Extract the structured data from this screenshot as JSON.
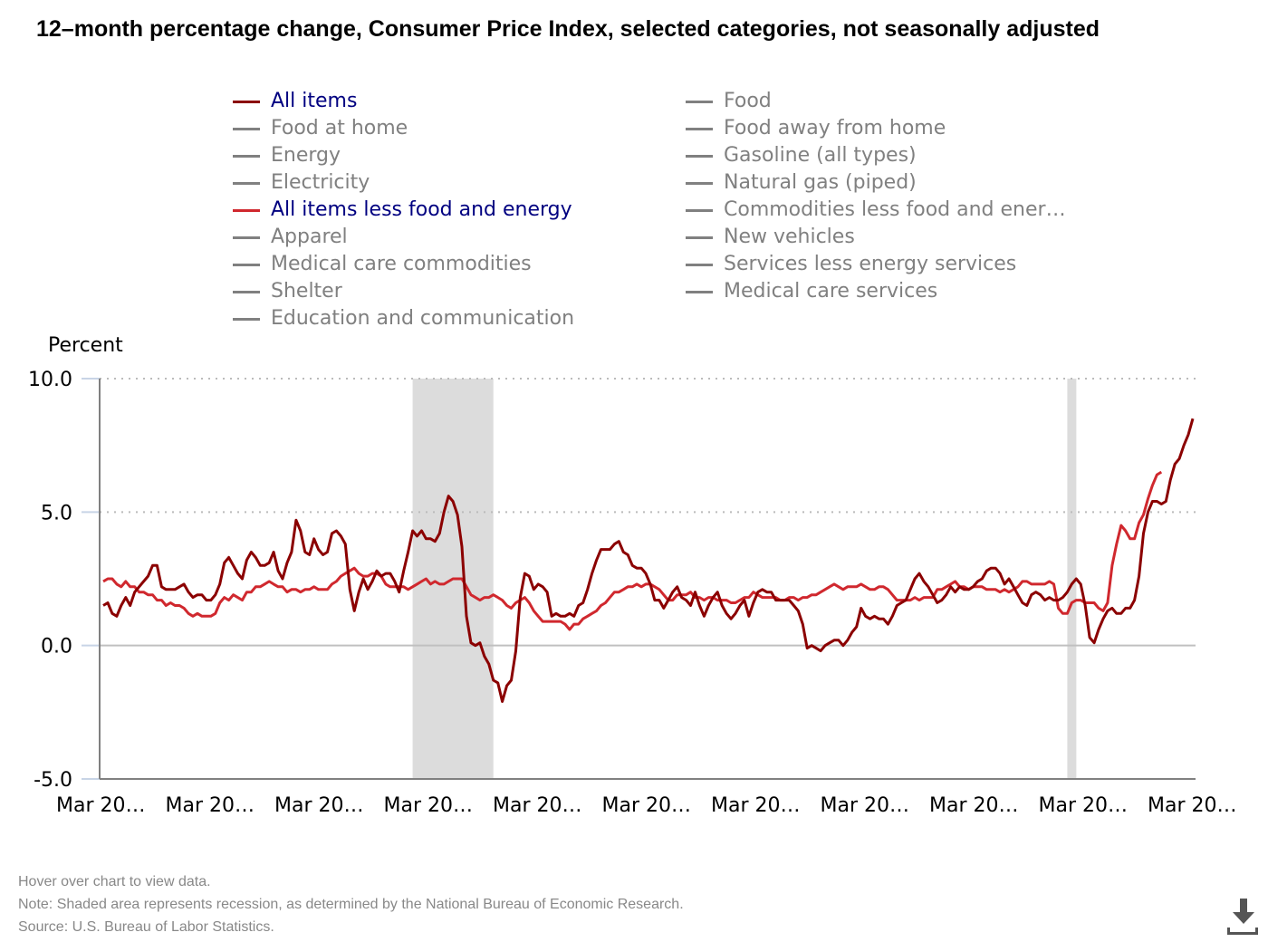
{
  "title": "12–month percentage change, Consumer Price Index, selected categories, not seasonally adjusted",
  "legend": {
    "col1": [
      {
        "label": "All items",
        "active": true,
        "color": "#8b0000"
      },
      {
        "label": "Food at home",
        "active": false,
        "color": "#808080"
      },
      {
        "label": "Energy",
        "active": false,
        "color": "#808080"
      },
      {
        "label": "Electricity",
        "active": false,
        "color": "#808080"
      },
      {
        "label": "All items less food and energy",
        "active": true,
        "color": "#d0282e"
      },
      {
        "label": "Apparel",
        "active": false,
        "color": "#808080"
      },
      {
        "label": "Medical care commodities",
        "active": false,
        "color": "#808080"
      },
      {
        "label": "Shelter",
        "active": false,
        "color": "#808080"
      },
      {
        "label": "Education and communication",
        "active": false,
        "color": "#808080"
      }
    ],
    "col2": [
      {
        "label": "Food",
        "active": false,
        "color": "#808080"
      },
      {
        "label": "Food away from home",
        "active": false,
        "color": "#808080"
      },
      {
        "label": "Gasoline (all types)",
        "active": false,
        "color": "#808080"
      },
      {
        "label": "Natural gas (piped)",
        "active": false,
        "color": "#808080"
      },
      {
        "label": "Commodities less food and ener…",
        "active": false,
        "color": "#808080"
      },
      {
        "label": "New vehicles",
        "active": false,
        "color": "#808080"
      },
      {
        "label": "Services less energy services",
        "active": false,
        "color": "#808080"
      },
      {
        "label": "Medical care services",
        "active": false,
        "color": "#808080"
      }
    ]
  },
  "chart_data": {
    "type": "line",
    "title": "12–month percentage change, Consumer Price Index, selected categories, not seasonally adjusted",
    "xlabel": "",
    "ylabel": "Percent",
    "ylim": [
      -5,
      10
    ],
    "yticks": [
      "10.0",
      "5.0",
      "0.0",
      "-5.0"
    ],
    "ytick_values": [
      10,
      5,
      0,
      -5
    ],
    "grid": "horizontal dotted",
    "x_start": "Mar 2002",
    "x_end": "Mar 2022",
    "frequency": "monthly",
    "xtick_labels": [
      "Mar 20…",
      "Mar 20…",
      "Mar 20…",
      "Mar 20…",
      "Mar 20…",
      "Mar 20…",
      "Mar 20…",
      "Mar 20…",
      "Mar 20…",
      "Mar 20…",
      "Mar 20…"
    ],
    "recessions": [
      {
        "start": "Dec 2007",
        "end": "Jun 2009"
      },
      {
        "start": "Feb 2020",
        "end": "Apr 2020"
      }
    ],
    "series": [
      {
        "name": "All items",
        "color": "#8b0000",
        "values": [
          1.5,
          1.6,
          1.2,
          1.1,
          1.5,
          1.8,
          1.5,
          2.0,
          2.2,
          2.4,
          2.6,
          3.0,
          3.0,
          2.2,
          2.1,
          2.1,
          2.1,
          2.2,
          2.3,
          2.0,
          1.8,
          1.9,
          1.9,
          1.7,
          1.7,
          1.9,
          2.3,
          3.1,
          3.3,
          3.0,
          2.7,
          2.5,
          3.2,
          3.5,
          3.3,
          3.0,
          3.0,
          3.1,
          3.5,
          2.8,
          2.5,
          3.1,
          3.5,
          4.7,
          4.3,
          3.5,
          3.4,
          4.0,
          3.6,
          3.4,
          3.5,
          4.2,
          4.3,
          4.1,
          3.8,
          2.1,
          1.3,
          2.0,
          2.5,
          2.1,
          2.4,
          2.8,
          2.6,
          2.7,
          2.7,
          2.4,
          2.0,
          2.8,
          3.5,
          4.3,
          4.1,
          4.3,
          4.0,
          4.0,
          3.9,
          4.2,
          5.0,
          5.6,
          5.4,
          4.9,
          3.7,
          1.1,
          0.1,
          0.0,
          0.1,
          -0.4,
          -0.7,
          -1.3,
          -1.4,
          -2.1,
          -1.5,
          -1.3,
          -0.2,
          1.8,
          2.7,
          2.6,
          2.1,
          2.3,
          2.2,
          2.0,
          1.1,
          1.2,
          1.1,
          1.1,
          1.2,
          1.1,
          1.5,
          1.6,
          2.1,
          2.7,
          3.2,
          3.6,
          3.6,
          3.6,
          3.8,
          3.9,
          3.5,
          3.4,
          3.0,
          2.9,
          2.9,
          2.7,
          2.3,
          1.7,
          1.7,
          1.4,
          1.7,
          2.0,
          2.2,
          1.8,
          1.7,
          1.5,
          2.0,
          1.5,
          1.1,
          1.5,
          1.8,
          2.0,
          1.5,
          1.2,
          1.0,
          1.2,
          1.5,
          1.7,
          1.1,
          1.6,
          2.0,
          2.1,
          2.0,
          2.0,
          1.7,
          1.7,
          1.7,
          1.7,
          1.5,
          1.3,
          0.8,
          -0.1,
          0.0,
          -0.1,
          -0.2,
          0.0,
          0.1,
          0.2,
          0.2,
          0.0,
          0.2,
          0.5,
          0.7,
          1.4,
          1.1,
          1.0,
          1.1,
          1.0,
          1.0,
          0.8,
          1.1,
          1.5,
          1.6,
          1.7,
          2.1,
          2.5,
          2.7,
          2.4,
          2.2,
          1.9,
          1.6,
          1.7,
          1.9,
          2.2,
          2.0,
          2.2,
          2.1,
          2.1,
          2.2,
          2.4,
          2.5,
          2.8,
          2.9,
          2.9,
          2.7,
          2.3,
          2.5,
          2.2,
          1.9,
          1.6,
          1.5,
          1.9,
          2.0,
          1.9,
          1.7,
          1.8,
          1.7,
          1.7,
          1.8,
          2.0,
          2.3,
          2.5,
          2.3,
          1.5,
          0.3,
          0.1,
          0.6,
          1.0,
          1.3,
          1.4,
          1.2,
          1.2,
          1.4,
          1.4,
          1.7,
          2.6,
          4.2,
          5.0,
          5.4,
          5.4,
          5.3,
          5.4,
          6.2,
          6.8,
          7.0,
          7.5,
          7.9,
          8.5
        ]
      },
      {
        "name": "All items less food and energy",
        "color": "#d0282e",
        "values": [
          2.4,
          2.5,
          2.5,
          2.3,
          2.2,
          2.4,
          2.2,
          2.2,
          2.0,
          2.0,
          1.9,
          1.9,
          1.7,
          1.7,
          1.5,
          1.6,
          1.5,
          1.5,
          1.4,
          1.2,
          1.1,
          1.2,
          1.1,
          1.1,
          1.1,
          1.2,
          1.6,
          1.8,
          1.7,
          1.9,
          1.8,
          1.7,
          2.0,
          2.0,
          2.2,
          2.2,
          2.3,
          2.4,
          2.3,
          2.2,
          2.2,
          2.0,
          2.1,
          2.1,
          2.0,
          2.1,
          2.1,
          2.2,
          2.1,
          2.1,
          2.1,
          2.3,
          2.4,
          2.6,
          2.7,
          2.8,
          2.9,
          2.7,
          2.6,
          2.6,
          2.7,
          2.7,
          2.6,
          2.3,
          2.2,
          2.2,
          2.2,
          2.2,
          2.1,
          2.2,
          2.3,
          2.4,
          2.5,
          2.3,
          2.4,
          2.3,
          2.3,
          2.4,
          2.5,
          2.5,
          2.5,
          2.2,
          1.9,
          1.8,
          1.7,
          1.8,
          1.8,
          1.9,
          1.8,
          1.7,
          1.5,
          1.4,
          1.6,
          1.7,
          1.8,
          1.6,
          1.3,
          1.1,
          0.9,
          0.9,
          0.9,
          0.9,
          0.9,
          0.8,
          0.6,
          0.8,
          0.8,
          1.0,
          1.1,
          1.2,
          1.3,
          1.5,
          1.6,
          1.8,
          2.0,
          2.0,
          2.1,
          2.2,
          2.2,
          2.3,
          2.2,
          2.3,
          2.3,
          2.2,
          2.1,
          1.9,
          1.7,
          1.7,
          1.9,
          1.9,
          1.9,
          2.0,
          1.8,
          1.8,
          1.7,
          1.8,
          1.8,
          1.7,
          1.7,
          1.7,
          1.6,
          1.6,
          1.7,
          1.8,
          1.8,
          2.0,
          1.9,
          1.8,
          1.8,
          1.8,
          1.8,
          1.7,
          1.7,
          1.8,
          1.8,
          1.7,
          1.8,
          1.8,
          1.9,
          1.9,
          2.0,
          2.1,
          2.2,
          2.3,
          2.2,
          2.1,
          2.2,
          2.2,
          2.2,
          2.3,
          2.2,
          2.1,
          2.1,
          2.2,
          2.2,
          2.1,
          1.9,
          1.7,
          1.7,
          1.7,
          1.7,
          1.8,
          1.7,
          1.8,
          1.8,
          1.8,
          2.1,
          2.1,
          2.2,
          2.3,
          2.4,
          2.2,
          2.2,
          2.1,
          2.2,
          2.2,
          2.2,
          2.1,
          2.1,
          2.1,
          2.0,
          2.1,
          2.0,
          2.1,
          2.2,
          2.4,
          2.4,
          2.3,
          2.3,
          2.3,
          2.3,
          2.4,
          2.3,
          1.4,
          1.2,
          1.2,
          1.6,
          1.7,
          1.7,
          1.6,
          1.6,
          1.6,
          1.4,
          1.3,
          1.6,
          3.0,
          3.8,
          4.5,
          4.3,
          4.0,
          4.0,
          4.6,
          4.9,
          5.5,
          6.0,
          6.4,
          6.5
        ]
      }
    ]
  },
  "footer": {
    "hover_note": "Hover over chart to view data.",
    "recession_note": "Note: Shaded area represents recession, as determined by the National Bureau of Economic Research.",
    "source": "Source: U.S. Bureau of Labor Statistics."
  },
  "icons": {
    "download": "download-icon"
  }
}
